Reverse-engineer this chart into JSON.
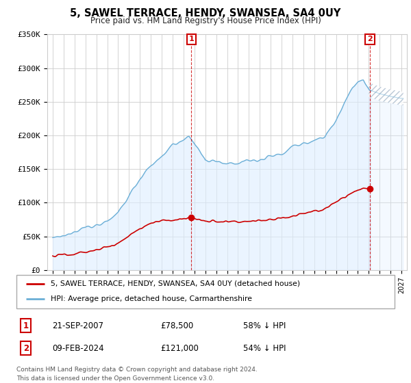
{
  "title": "5, SAWEL TERRACE, HENDY, SWANSEA, SA4 0UY",
  "subtitle": "Price paid vs. HM Land Registry's House Price Index (HPI)",
  "ylim": [
    0,
    350000
  ],
  "yticks": [
    0,
    50000,
    100000,
    150000,
    200000,
    250000,
    300000,
    350000
  ],
  "ytick_labels": [
    "£0",
    "£50K",
    "£100K",
    "£150K",
    "£200K",
    "£250K",
    "£300K",
    "£350K"
  ],
  "xlim_start": 1994.5,
  "xlim_end": 2027.5,
  "transaction1_x": 2007.72,
  "transaction1_y": 78500,
  "transaction2_x": 2024.11,
  "transaction2_y": 121000,
  "transaction1_date": "21-SEP-2007",
  "transaction1_price": "£78,500",
  "transaction1_hpi": "58% ↓ HPI",
  "transaction2_date": "09-FEB-2024",
  "transaction2_price": "£121,000",
  "transaction2_hpi": "54% ↓ HPI",
  "legend_property": "5, SAWEL TERRACE, HENDY, SWANSEA, SA4 0UY (detached house)",
  "legend_hpi": "HPI: Average price, detached house, Carmarthenshire",
  "footer": "Contains HM Land Registry data © Crown copyright and database right 2024.\nThis data is licensed under the Open Government Licence v3.0.",
  "property_color": "#cc0000",
  "hpi_color": "#6aaed6",
  "hpi_fill_color": "#ddeeff",
  "vline_color": "#cc0000",
  "background_color": "#ffffff",
  "grid_color": "#cccccc"
}
